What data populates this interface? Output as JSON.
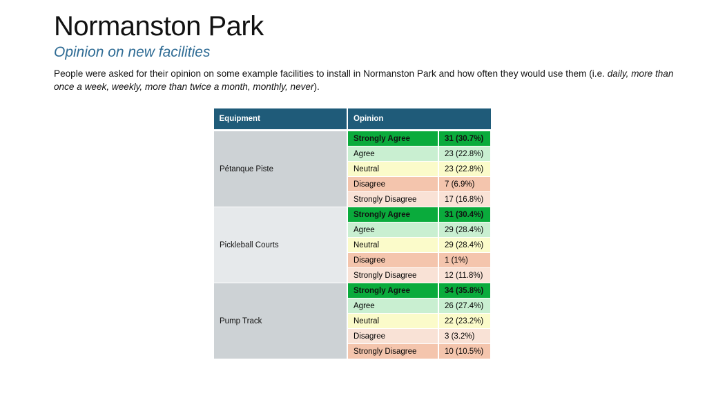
{
  "header": {
    "title": "Normanston Park",
    "subtitle": "Opinion on new facilities",
    "description_prefix": "People were asked for their opinion on some example facilities to install in Normanston Park and how often they would use them (i.e. ",
    "description_terms": "daily, more than once a week, weekly, more than twice a month, monthly, never",
    "description_suffix": ")."
  },
  "table": {
    "columns": [
      "Equipment",
      "Opinion"
    ],
    "groups": [
      {
        "equipment": "Pétanque Piste",
        "rows": [
          {
            "opinion": "Strongly Agree",
            "value": "31 (30.7%)"
          },
          {
            "opinion": "Agree",
            "value": "23 (22.8%)"
          },
          {
            "opinion": "Neutral",
            "value": "23 (22.8%)"
          },
          {
            "opinion": "Disagree",
            "value": "7 (6.9%)"
          },
          {
            "opinion": "Strongly Disagree",
            "value": "17 (16.8%)"
          }
        ]
      },
      {
        "equipment": "Pickleball Courts",
        "rows": [
          {
            "opinion": "Strongly Agree",
            "value": "31 (30.4%)"
          },
          {
            "opinion": "Agree",
            "value": "29 (28.4%)"
          },
          {
            "opinion": "Neutral",
            "value": "29 (28.4%)"
          },
          {
            "opinion": "Disagree",
            "value": "1 (1%)"
          },
          {
            "opinion": "Strongly Disagree",
            "value": "12 (11.8%)"
          }
        ]
      },
      {
        "equipment": "Pump Track",
        "rows": [
          {
            "opinion": "Strongly Agree",
            "value": "34 (35.8%)"
          },
          {
            "opinion": "Agree",
            "value": "26 (27.4%)"
          },
          {
            "opinion": "Neutral",
            "value": "22 (23.2%)"
          },
          {
            "opinion": "Disagree",
            "value": "3 (3.2%)"
          },
          {
            "opinion": "Strongly Disagree",
            "value": "10 (10.5%)"
          }
        ]
      }
    ]
  },
  "colors": {
    "header_bg": "#1f5b79",
    "strongly_agree": "#0aab3c",
    "agree": "#c9efd1",
    "neutral": "#fbfbca",
    "disagree": "#f4c5ad",
    "strongly_disagree": "#f9e2d6"
  }
}
